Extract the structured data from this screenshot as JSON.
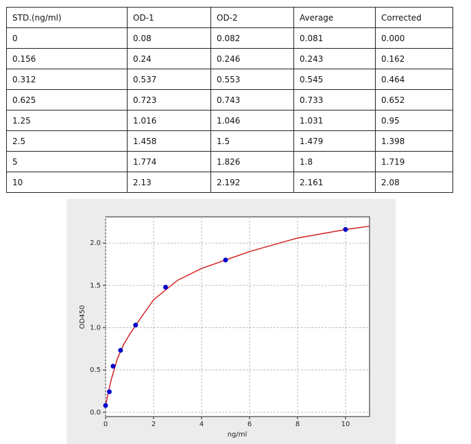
{
  "table": {
    "header": [
      "STD.(ng/ml)",
      "OD-1",
      "OD-2",
      "Average",
      "Corrected"
    ],
    "rows": [
      [
        "0",
        "0.08",
        "0.082",
        "0.081",
        "0.000"
      ],
      [
        "0.156",
        "0.24",
        "0.246",
        "0.243",
        "0.162"
      ],
      [
        "0.312",
        "0.537",
        "0.553",
        "0.545",
        "0.464"
      ],
      [
        "0.625",
        "0.723",
        "0.743",
        "0.733",
        "0.652"
      ],
      [
        "1.25",
        "1.016",
        "1.046",
        "1.031",
        "0.95"
      ],
      [
        "2.5",
        "1.458",
        "1.5",
        "1.479",
        "1.398"
      ],
      [
        "5",
        "1.774",
        "1.826",
        "1.8",
        "1.719"
      ],
      [
        "10",
        "2.13",
        "2.192",
        "2.161",
        "2.08"
      ]
    ]
  },
  "chart_data": {
    "type": "scatter",
    "x_label": "ng/ml",
    "y_label": "OD450",
    "x": [
      0,
      0.156,
      0.312,
      0.625,
      1.25,
      2.5,
      5,
      10
    ],
    "series": [
      {
        "color": "#0000cc",
        "values": [
          0.081,
          0.243,
          0.545,
          0.733,
          1.031,
          1.479,
          1.8,
          2.161
        ]
      }
    ],
    "curve": {
      "color": "#d42020",
      "x": [
        0,
        0.125,
        0.25,
        0.5,
        0.75,
        1,
        1.5,
        2,
        3,
        4,
        5,
        6,
        8,
        10,
        11
      ],
      "y": [
        0.08,
        0.25,
        0.4,
        0.64,
        0.8,
        0.92,
        1.13,
        1.33,
        1.56,
        1.7,
        1.8,
        1.9,
        2.06,
        2.16,
        2.2
      ]
    },
    "xlim": [
      0,
      11
    ],
    "ylim": [
      -0.05,
      2.31
    ],
    "xticks": [
      0,
      2,
      4,
      6,
      8,
      10
    ],
    "yticks": [
      {
        "value": 0,
        "label": "0.0"
      },
      0.5,
      {
        "value": 1,
        "label": "1.0"
      },
      1.5,
      {
        "value": 2,
        "label": "2.0"
      }
    ],
    "grid": true
  }
}
